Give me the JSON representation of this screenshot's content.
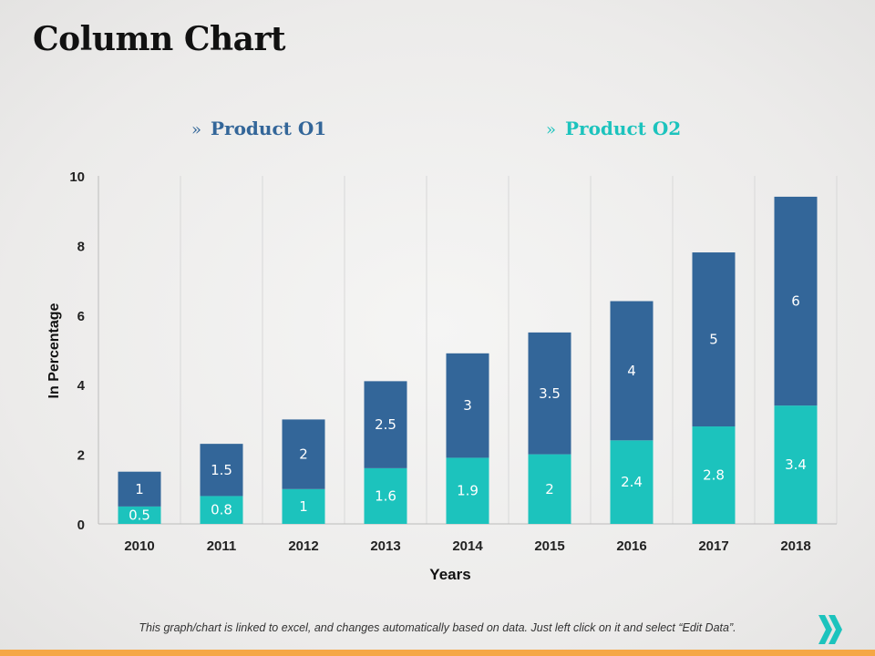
{
  "title": "Column Chart",
  "footer": "This graph/chart is linked to excel, and changes automatically based on data. Just left click on it and select “Edit Data”.",
  "colors": {
    "product_o1": "#336699",
    "product_o2": "#1cc3bd",
    "accent_bar": "#f5a746"
  },
  "legend_marker": "»",
  "chart_data": {
    "type": "bar",
    "stacked": true,
    "categories": [
      "2010",
      "2011",
      "2012",
      "2013",
      "2014",
      "2015",
      "2016",
      "2017",
      "2018"
    ],
    "series": [
      {
        "name": "Product O2",
        "color": "#1cc3bd",
        "values": [
          0.5,
          0.8,
          1,
          1.6,
          1.9,
          2,
          2.4,
          2.8,
          3.4
        ]
      },
      {
        "name": "Product O1",
        "color": "#336699",
        "values": [
          1,
          1.5,
          2,
          2.5,
          3,
          3.5,
          4,
          5,
          6
        ]
      }
    ],
    "title": "",
    "xlabel": "Years",
    "ylabel": "In Percentage",
    "ylim": [
      0,
      10
    ],
    "yticks": [
      "0",
      "2",
      "4",
      "6",
      "8",
      "10"
    ],
    "grid": "vertical",
    "legend_placement": "top"
  }
}
